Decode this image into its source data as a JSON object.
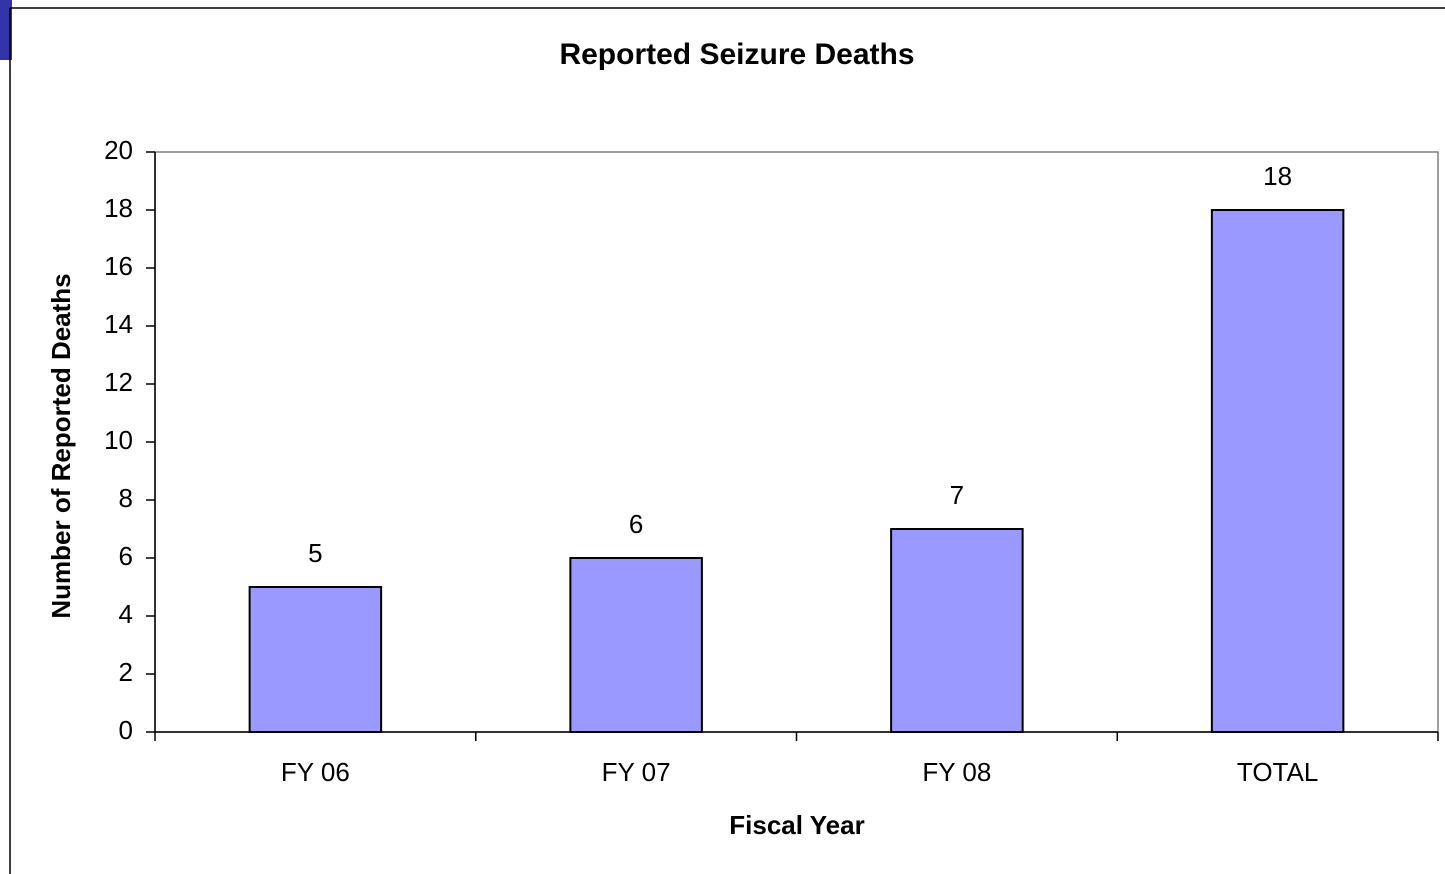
{
  "chart_data": {
    "type": "bar",
    "title": "Reported Seizure Deaths",
    "x_label": "Fiscal Year",
    "y_label": "Number of Reported Deaths",
    "categories": [
      "FY 06",
      "FY 07",
      "FY 08",
      "TOTAL"
    ],
    "values": [
      5,
      6,
      7,
      18
    ],
    "color": "#9999ff",
    "ylim": [
      0,
      20
    ],
    "yticks": [
      0,
      2,
      4,
      6,
      8,
      10,
      12,
      14,
      16,
      18,
      20
    ],
    "grid": false
  }
}
